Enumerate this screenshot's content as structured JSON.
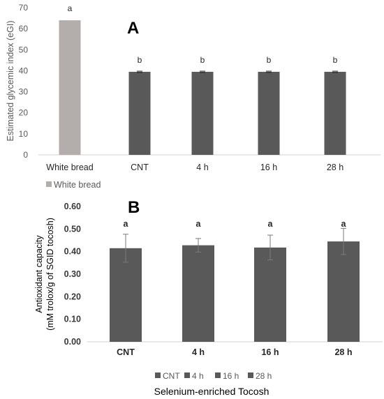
{
  "chart_data": [
    {
      "panel_label": "A",
      "type": "bar",
      "ylabel": "Estimated glycemic index (eGI)",
      "ylim": [
        0,
        70
      ],
      "yticks": [
        0,
        10,
        20,
        30,
        40,
        50,
        60,
        70
      ],
      "categories": [
        "White bread",
        "CNT",
        "4 h",
        "16 h",
        "28 h"
      ],
      "values": [
        64,
        39.5,
        39.5,
        39.5,
        39.5
      ],
      "errors": [
        0,
        0.3,
        0.3,
        0.3,
        0.3
      ],
      "letters": [
        "a",
        "b",
        "b",
        "b",
        "b"
      ],
      "bar_colors": [
        "#b3adab",
        "#595959",
        "#595959",
        "#595959",
        "#595959"
      ],
      "legend": [
        "White bread"
      ],
      "legend_color": "#b3adab",
      "grid": false
    },
    {
      "panel_label": "B",
      "type": "bar",
      "ylabel_lines": [
        "Antioxidant capacity",
        "(mM trolox/g of SGID tocosh)"
      ],
      "xlabel": "Selenium-enriched Tocosh",
      "ylim": [
        0,
        0.6
      ],
      "yticks": [
        "0.00",
        "0.10",
        "0.20",
        "0.30",
        "0.40",
        "0.50",
        "0.60"
      ],
      "categories": [
        "CNT",
        "4 h",
        "16 h",
        "28 h"
      ],
      "values": [
        0.415,
        0.428,
        0.418,
        0.445
      ],
      "errors": [
        0.062,
        0.03,
        0.055,
        0.058
      ],
      "letters": [
        "a",
        "a",
        "a",
        "a"
      ],
      "legend": [
        "CNT",
        "4 h",
        "16 h",
        "28 h"
      ],
      "bar_color": "#595959",
      "grid": false
    }
  ]
}
